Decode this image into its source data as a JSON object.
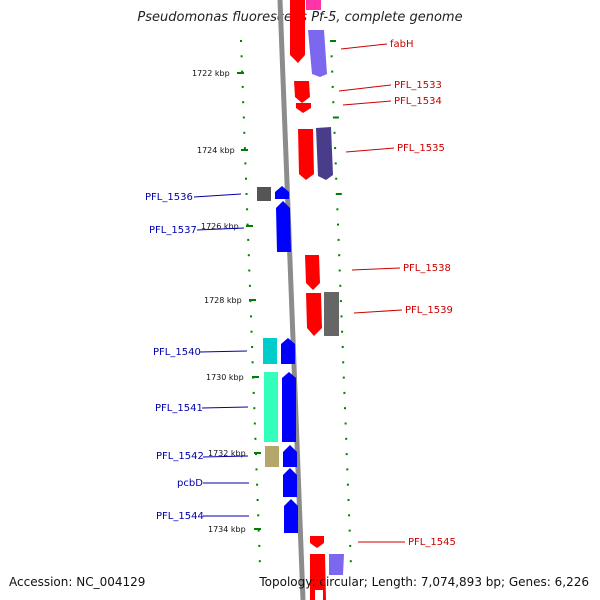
{
  "title": "Pseudomonas fluorescens Pf-5, complete genome",
  "footer": {
    "accession": "Accession: NC_004129",
    "summary": "Topology: circular; Length: 7,074,893 bp; Genes: 6,226"
  },
  "colors": {
    "plus_label": "#cc0000",
    "minus_label": "#0000aa",
    "backbone": "#8c8c8c",
    "tick": "#008000"
  },
  "scale_labels": [
    "1722 kbp",
    "1724 kbp",
    "1726 kbp",
    "1728 kbp",
    "1730 kbp",
    "1732 kbp",
    "1734 kbp"
  ],
  "genes_plus": [
    {
      "name": "fabH",
      "start_kbp": 1720.9,
      "end_kbp": 1721.3
    },
    {
      "name": "PFL_1533",
      "start_kbp": 1722.2,
      "end_kbp": 1722.4
    },
    {
      "name": "PFL_1534",
      "start_kbp": 1722.5,
      "end_kbp": 1722.55
    },
    {
      "name": "PFL_1535",
      "start_kbp": 1723.3,
      "end_kbp": 1724.0
    },
    {
      "name": "PFL_1538",
      "start_kbp": 1727.1,
      "end_kbp": 1727.5
    },
    {
      "name": "PFL_1539",
      "start_kbp": 1728.0,
      "end_kbp": 1728.4
    },
    {
      "name": "PFL_1545",
      "start_kbp": 1734.1,
      "end_kbp": 1734.2
    }
  ],
  "genes_minus": [
    {
      "name": "PFL_1536",
      "start_kbp": 1725.2,
      "end_kbp": 1725.4
    },
    {
      "name": "PFL_1537",
      "start_kbp": 1725.5,
      "end_kbp": 1726.1
    },
    {
      "name": "PFL_1540",
      "start_kbp": 1729.4,
      "end_kbp": 1729.7
    },
    {
      "name": "PFL_1541",
      "start_kbp": 1730.0,
      "end_kbp": 1730.8
    },
    {
      "name": "PFL_1542",
      "start_kbp": 1731.9,
      "end_kbp": 1732.2
    },
    {
      "name": "pcbD",
      "start_kbp": 1732.3,
      "end_kbp": 1732.6
    },
    {
      "name": "PFL_1544",
      "start_kbp": 1732.9,
      "end_kbp": 1733.4
    }
  ]
}
